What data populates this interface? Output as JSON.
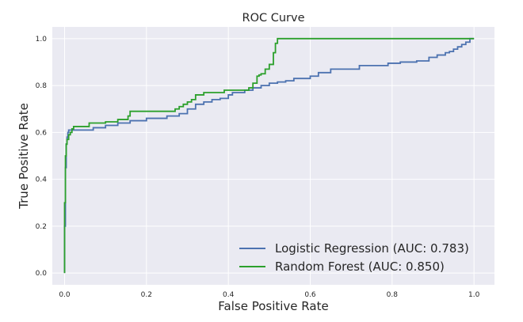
{
  "chart_data": {
    "type": "line",
    "title": "ROC Curve",
    "xlabel": "False Positive Rate",
    "ylabel": "True Positive Rate",
    "xlim": [
      -0.03,
      1.05
    ],
    "ylim": [
      -0.05,
      1.05
    ],
    "xticks": [
      "0.0",
      "0.2",
      "0.4",
      "0.6",
      "0.8",
      "1.0"
    ],
    "yticks": [
      "0.0",
      "0.2",
      "0.4",
      "0.6",
      "0.8",
      "1.0"
    ],
    "grid": true,
    "legend_position": "lower-right",
    "colors": {
      "background": "#eaeaf2",
      "grid": "#ffffff"
    },
    "series": [
      {
        "name": "Logistic Regression (AUC: 0.783)",
        "color": "#4c72b0",
        "x": [
          0,
          0,
          0.002,
          0.002,
          0.004,
          0.004,
          0.006,
          0.006,
          0.008,
          0.008,
          0.01,
          0.01,
          0.07,
          0.07,
          0.1,
          0.1,
          0.13,
          0.13,
          0.16,
          0.16,
          0.2,
          0.2,
          0.25,
          0.25,
          0.28,
          0.28,
          0.3,
          0.3,
          0.32,
          0.32,
          0.34,
          0.34,
          0.36,
          0.36,
          0.38,
          0.38,
          0.4,
          0.4,
          0.41,
          0.41,
          0.44,
          0.44,
          0.46,
          0.46,
          0.48,
          0.48,
          0.5,
          0.5,
          0.52,
          0.52,
          0.54,
          0.54,
          0.56,
          0.56,
          0.6,
          0.6,
          0.62,
          0.62,
          0.65,
          0.65,
          0.72,
          0.72,
          0.79,
          0.79,
          0.82,
          0.82,
          0.86,
          0.86,
          0.89,
          0.89,
          0.91,
          0.91,
          0.93,
          0.93,
          0.94,
          0.94,
          0.95,
          0.95,
          0.96,
          0.96,
          0.97,
          0.97,
          0.98,
          0.98,
          0.99,
          0.99,
          1.0
        ],
        "y": [
          0,
          0.2,
          0.2,
          0.45,
          0.45,
          0.55,
          0.55,
          0.58,
          0.58,
          0.6,
          0.6,
          0.61,
          0.61,
          0.62,
          0.62,
          0.63,
          0.63,
          0.64,
          0.64,
          0.65,
          0.65,
          0.66,
          0.66,
          0.67,
          0.67,
          0.68,
          0.68,
          0.7,
          0.7,
          0.72,
          0.72,
          0.73,
          0.73,
          0.74,
          0.74,
          0.745,
          0.745,
          0.76,
          0.76,
          0.77,
          0.77,
          0.78,
          0.78,
          0.79,
          0.79,
          0.8,
          0.8,
          0.81,
          0.81,
          0.815,
          0.815,
          0.82,
          0.82,
          0.83,
          0.83,
          0.84,
          0.84,
          0.855,
          0.855,
          0.87,
          0.87,
          0.885,
          0.885,
          0.895,
          0.895,
          0.9,
          0.9,
          0.905,
          0.905,
          0.92,
          0.92,
          0.93,
          0.93,
          0.94,
          0.94,
          0.945,
          0.945,
          0.955,
          0.955,
          0.965,
          0.965,
          0.975,
          0.975,
          0.985,
          0.985,
          1.0,
          1.0
        ]
      },
      {
        "name": "Random Forest (AUC: 0.850)",
        "color": "#2ca02c",
        "x": [
          0,
          0,
          0.002,
          0.002,
          0.004,
          0.004,
          0.006,
          0.006,
          0.01,
          0.01,
          0.014,
          0.014,
          0.018,
          0.018,
          0.022,
          0.022,
          0.06,
          0.06,
          0.1,
          0.1,
          0.13,
          0.13,
          0.155,
          0.155,
          0.16,
          0.16,
          0.27,
          0.27,
          0.28,
          0.28,
          0.29,
          0.29,
          0.3,
          0.3,
          0.31,
          0.31,
          0.32,
          0.32,
          0.34,
          0.34,
          0.39,
          0.39,
          0.45,
          0.45,
          0.46,
          0.46,
          0.47,
          0.47,
          0.475,
          0.475,
          0.48,
          0.48,
          0.49,
          0.49,
          0.5,
          0.5,
          0.51,
          0.51,
          0.515,
          0.515,
          0.52,
          0.52,
          1.0
        ],
        "y": [
          0,
          0.3,
          0.3,
          0.5,
          0.5,
          0.55,
          0.55,
          0.57,
          0.57,
          0.59,
          0.59,
          0.6,
          0.6,
          0.615,
          0.615,
          0.625,
          0.625,
          0.64,
          0.64,
          0.645,
          0.645,
          0.655,
          0.655,
          0.67,
          0.67,
          0.69,
          0.69,
          0.7,
          0.7,
          0.71,
          0.71,
          0.72,
          0.72,
          0.73,
          0.73,
          0.74,
          0.74,
          0.76,
          0.76,
          0.77,
          0.77,
          0.78,
          0.78,
          0.79,
          0.79,
          0.81,
          0.81,
          0.84,
          0.84,
          0.845,
          0.845,
          0.85,
          0.85,
          0.87,
          0.87,
          0.89,
          0.89,
          0.94,
          0.94,
          0.98,
          0.98,
          1.0,
          1.0
        ]
      }
    ]
  }
}
